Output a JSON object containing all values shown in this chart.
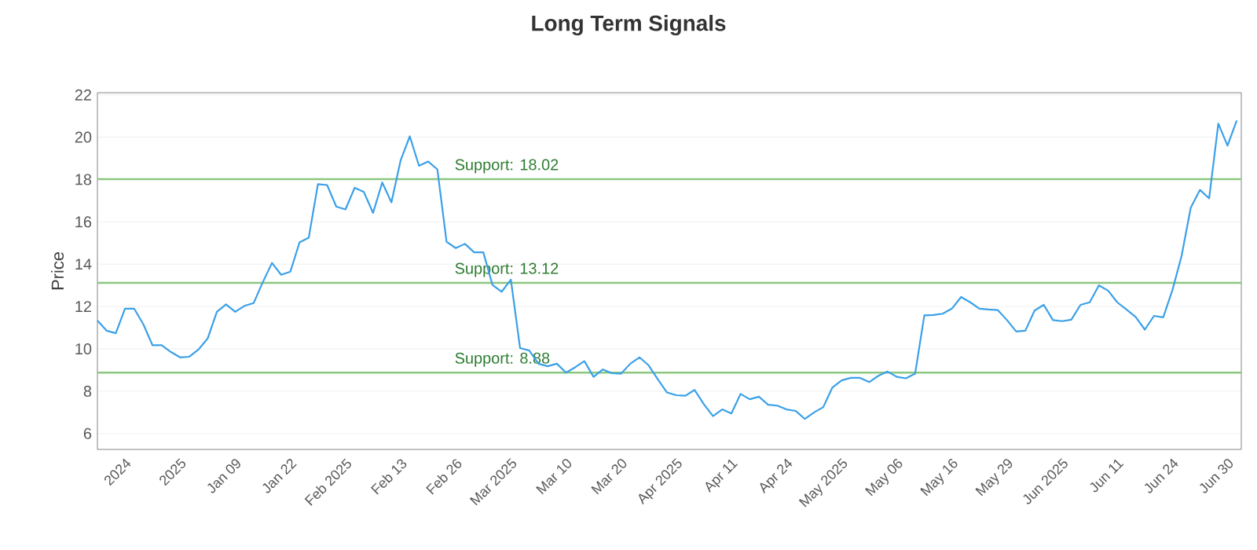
{
  "chart_data": {
    "type": "line",
    "title": "Long Term Signals",
    "ylabel": "Price",
    "categories": [
      null,
      null,
      null,
      "2024",
      null,
      null,
      null,
      null,
      null,
      "2025",
      null,
      null,
      null,
      null,
      null,
      "Jan 09",
      null,
      null,
      null,
      null,
      null,
      "Jan 22",
      null,
      null,
      null,
      null,
      null,
      "Feb 2025",
      null,
      null,
      null,
      null,
      null,
      "Feb 13",
      null,
      null,
      null,
      null,
      null,
      "Feb 26",
      null,
      null,
      null,
      null,
      null,
      "Mar 2025",
      null,
      null,
      null,
      null,
      null,
      "Mar 10",
      null,
      null,
      null,
      null,
      null,
      "Mar 20",
      null,
      null,
      null,
      null,
      null,
      "Apr 2025",
      null,
      null,
      null,
      null,
      null,
      "Apr 11",
      null,
      null,
      null,
      null,
      null,
      "Apr 24",
      null,
      null,
      null,
      null,
      null,
      "May 2025",
      null,
      null,
      null,
      null,
      null,
      "May 06",
      null,
      null,
      null,
      null,
      null,
      "May 16",
      null,
      null,
      null,
      null,
      null,
      "May 29",
      null,
      null,
      null,
      null,
      null,
      "Jun 2025",
      null,
      null,
      null,
      null,
      null,
      "Jun 11",
      null,
      null,
      null,
      null,
      null,
      "Jun 24",
      null,
      null,
      null,
      null,
      null,
      "Jun 30",
      null
    ],
    "series": [
      {
        "color": "#3aa0e8",
        "values": [
          11.34,
          10.86,
          10.74,
          11.9,
          11.9,
          11.16,
          10.17,
          10.17,
          9.85,
          9.6,
          9.63,
          9.97,
          10.49,
          11.75,
          12.1,
          11.75,
          12.03,
          12.16,
          13.15,
          14.06,
          13.5,
          13.65,
          15.03,
          15.25,
          17.78,
          17.74,
          16.72,
          16.59,
          17.61,
          17.41,
          16.42,
          17.86,
          16.92,
          18.9,
          20.04,
          18.65,
          18.85,
          18.48,
          15.06,
          14.76,
          14.96,
          14.56,
          14.56,
          13.02,
          12.7,
          13.27,
          10.04,
          9.92,
          9.3,
          9.18,
          9.3,
          8.88,
          9.13,
          9.42,
          8.68,
          9.03,
          8.85,
          8.83,
          9.3,
          9.6,
          9.22,
          8.56,
          7.94,
          7.81,
          7.79,
          8.06,
          7.39,
          6.82,
          7.14,
          6.95,
          7.87,
          7.62,
          7.74,
          7.36,
          7.32,
          7.14,
          7.07,
          6.69,
          7.0,
          7.25,
          8.18,
          8.51,
          8.63,
          8.63,
          8.43,
          8.73,
          8.93,
          8.68,
          8.61,
          8.83,
          11.58,
          11.6,
          11.66,
          11.9,
          12.45,
          12.2,
          11.9,
          11.86,
          11.83,
          11.36,
          10.82,
          10.86,
          11.81,
          12.08,
          11.36,
          11.31,
          11.38,
          12.08,
          12.2,
          13.0,
          12.75,
          12.2,
          11.86,
          11.51,
          10.91,
          11.56,
          11.49,
          12.77,
          14.39,
          16.67,
          17.51,
          17.11,
          20.64,
          19.6,
          20.79
        ]
      }
    ],
    "ylim": [
      5.25,
      22.1
    ],
    "yticks": [
      6,
      8,
      10,
      12,
      14,
      16,
      18,
      20,
      22
    ],
    "grid": "y",
    "ref_lines": [
      {
        "axis": "y",
        "value": 18.02,
        "label": "Support: 18.02",
        "color": "#8cc77f"
      },
      {
        "axis": "y",
        "value": 13.12,
        "label": "Support: 13.12",
        "color": "#8cc77f"
      },
      {
        "axis": "y",
        "value": 8.88,
        "label": "Support: 8.88",
        "color": "#8cc77f"
      }
    ]
  }
}
